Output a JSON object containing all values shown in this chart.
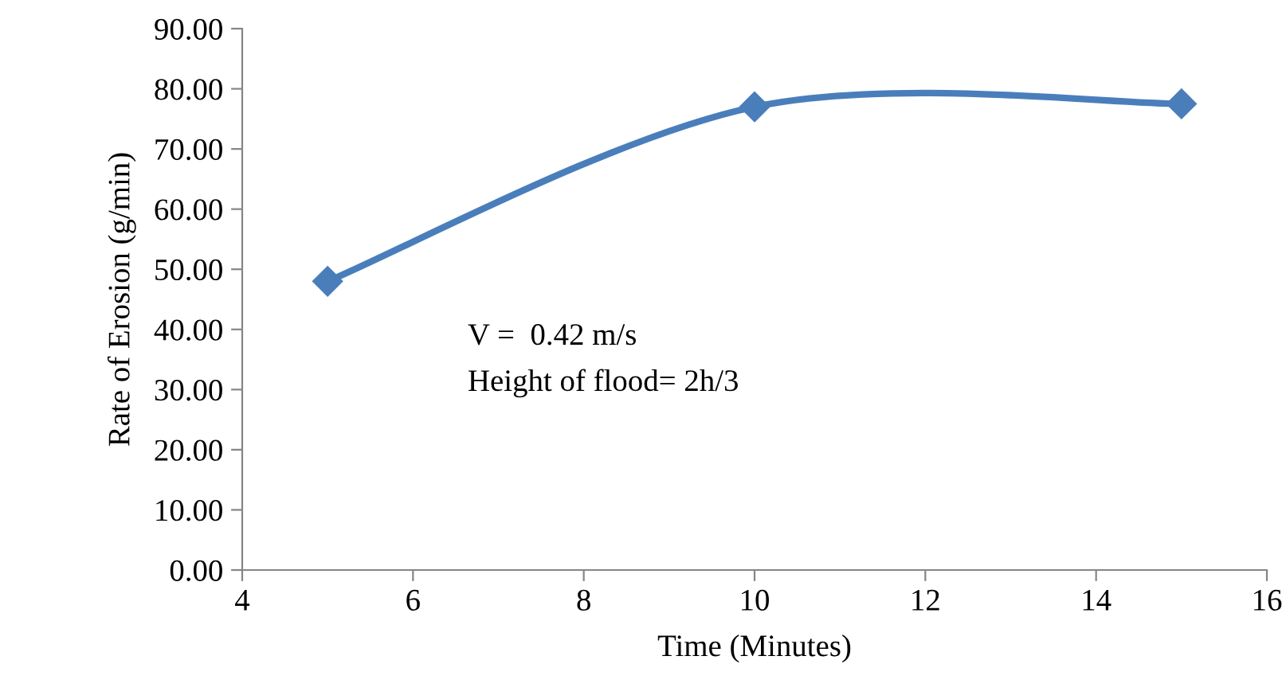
{
  "chart_data": {
    "type": "line",
    "xlabel": "Time (Minutes)",
    "ylabel": "Rate of Erosion (g/min)",
    "x": [
      5,
      10,
      15
    ],
    "series": [
      {
        "color": "#4a7ebb",
        "values": [
          48.0,
          77.0,
          77.5
        ]
      }
    ],
    "xlim": [
      4,
      16
    ],
    "xticks": [
      4,
      6,
      8,
      10,
      12,
      14,
      16
    ],
    "ylim": [
      0,
      90
    ],
    "yticks": [
      {
        "value": 0,
        "label": "0.00"
      },
      {
        "value": 10,
        "label": "10.00"
      },
      {
        "value": 20,
        "label": "20.00"
      },
      {
        "value": 30,
        "label": "30.00"
      },
      {
        "value": 40,
        "label": "40.00"
      },
      {
        "value": 50,
        "label": "50.00"
      },
      {
        "value": 60,
        "label": "60.00"
      },
      {
        "value": 70,
        "label": "70.00"
      },
      {
        "value": 80,
        "label": "80.00"
      },
      {
        "value": 90,
        "label": "90.00"
      }
    ],
    "annotations": [
      "V =  0.42 m/s",
      "Height of flood= 2h/3"
    ],
    "marker": "diamond",
    "line_style": "solid",
    "grid": false,
    "legend": false
  }
}
